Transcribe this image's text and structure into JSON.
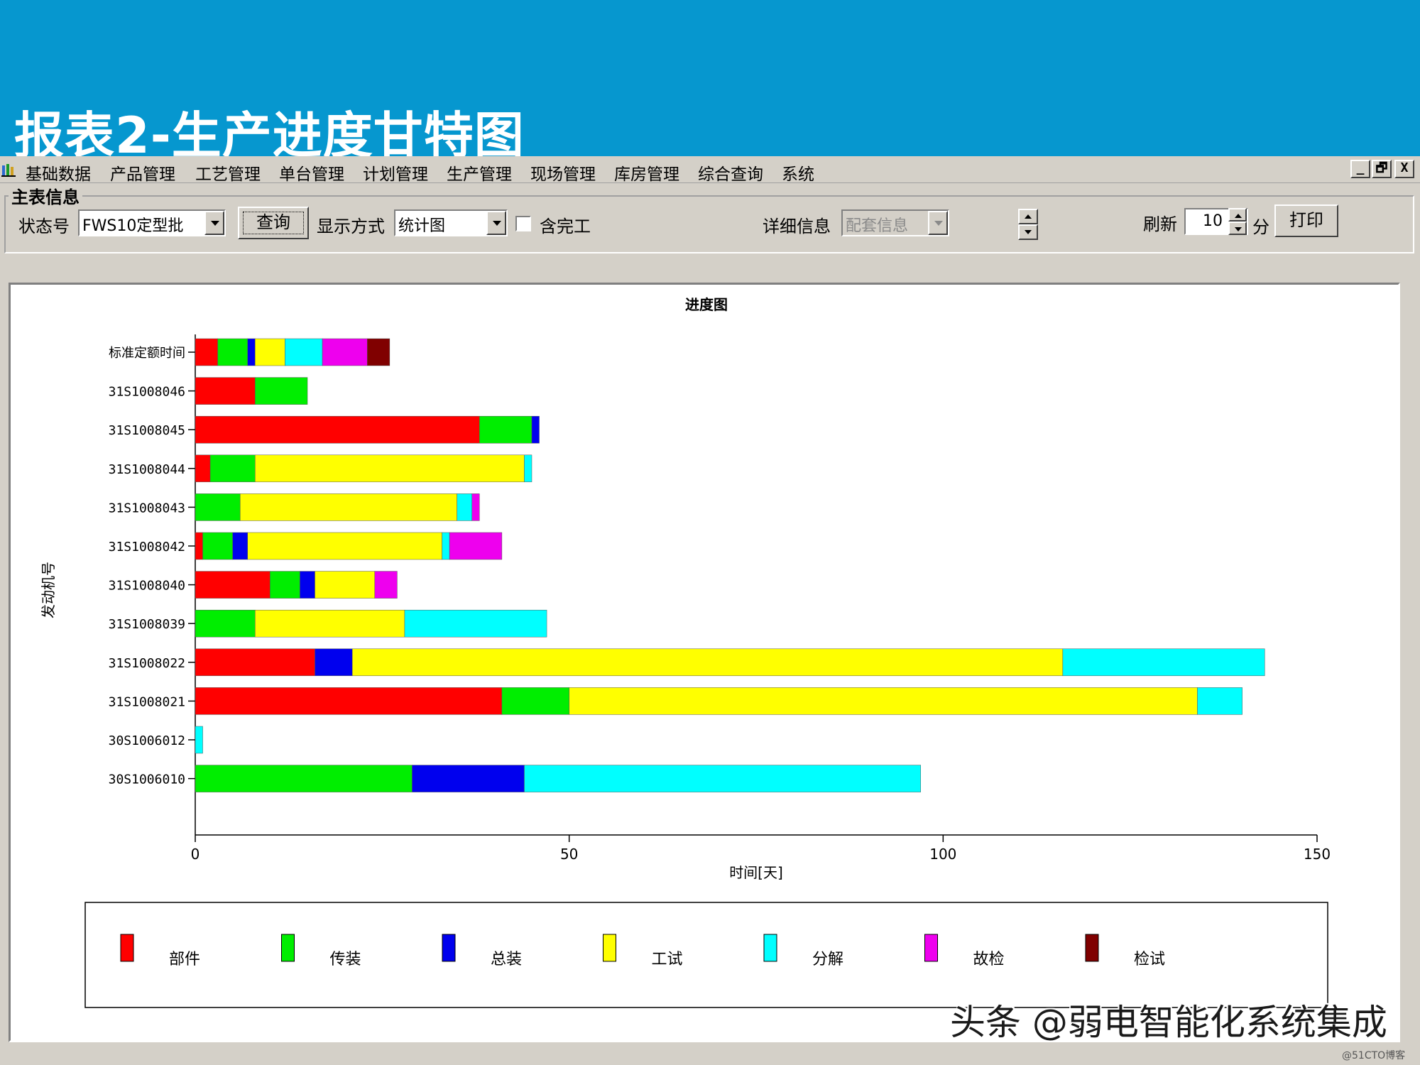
{
  "slide": {
    "title": "报表2-生产进度甘特图"
  },
  "menu": {
    "items": [
      "基础数据",
      "产品管理",
      "工艺管理",
      "单台管理",
      "计划管理",
      "生产管理",
      "现场管理",
      "库房管理",
      "综合查询",
      "系统"
    ],
    "window_controls": [
      "_",
      "🗗",
      "X"
    ]
  },
  "toolbar": {
    "group_caption": "主表信息",
    "state_label": "状态号",
    "state_value": "FWS10定型批",
    "query_button": "查询",
    "display_label": "显示方式",
    "display_value": "统计图",
    "include_done_label": "含完工",
    "include_done_checked": false,
    "detail_label": "详细信息",
    "detail_value": "配套信息",
    "refresh_label": "刷新",
    "refresh_value": "10",
    "refresh_unit": "分",
    "print_button": "打印"
  },
  "icons": {
    "app": "chart-app-icon"
  },
  "chart_data": {
    "type": "bar",
    "orientation": "horizontal-stacked",
    "title": "进度图",
    "xlabel": "时间[天]",
    "ylabel": "发动机号",
    "xlim": [
      0,
      150
    ],
    "xticks": [
      "0",
      "50",
      "100",
      "150"
    ],
    "legend_position": "bottom",
    "categories": [
      "标准定额时间",
      "31S1008046",
      "31S1008045",
      "31S1008044",
      "31S1008043",
      "31S1008042",
      "31S1008040",
      "31S1008039",
      "31S1008022",
      "31S1008021",
      "30S1006012",
      "30S1006010"
    ],
    "series": [
      {
        "name": "部件",
        "color": "#ff0000",
        "values": [
          3,
          8,
          38,
          2,
          0,
          1,
          10,
          0,
          16,
          41,
          0,
          0
        ]
      },
      {
        "name": "传装",
        "color": "#00ee00",
        "values": [
          4,
          7,
          7,
          6,
          6,
          4,
          4,
          8,
          0,
          9,
          0,
          29
        ]
      },
      {
        "name": "总装",
        "color": "#0000ee",
        "values": [
          1,
          0,
          1,
          0,
          0,
          2,
          2,
          0,
          5,
          0,
          0,
          15
        ]
      },
      {
        "name": "工试",
        "color": "#ffff00",
        "values": [
          4,
          0,
          0,
          36,
          29,
          26,
          8,
          20,
          95,
          84,
          0,
          0
        ]
      },
      {
        "name": "分解",
        "color": "#00ffff",
        "values": [
          5,
          0,
          0,
          1,
          2,
          1,
          0,
          19,
          27,
          6,
          1,
          53
        ]
      },
      {
        "name": "故检",
        "color": "#ee00ee",
        "values": [
          6,
          0,
          0,
          0,
          1,
          7,
          3,
          0,
          0,
          0,
          0,
          0
        ]
      },
      {
        "name": "检试",
        "color": "#800000",
        "values": [
          3,
          0,
          0,
          0,
          0,
          0,
          0,
          0,
          0,
          0,
          0,
          0
        ]
      }
    ]
  },
  "footer": {
    "watermark": "头条 @弱电智能化系统集成",
    "corner": "@51CTO博客"
  }
}
